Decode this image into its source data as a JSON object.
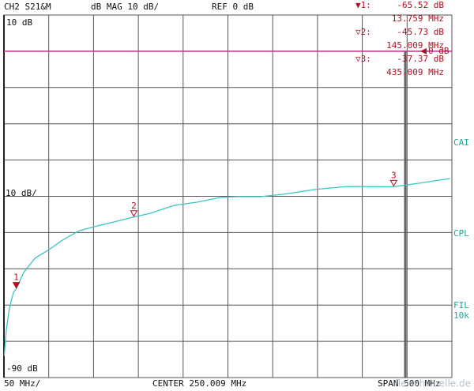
{
  "chart_data": {
    "type": "line",
    "header": [
      "CH2 S21&M",
      "dB MAG 10 dB/",
      "REF 0 dB"
    ],
    "xlim": [
      0,
      500
    ],
    "ylim": [
      -90,
      10
    ],
    "yticks": [
      {
        "value": 10,
        "label": "10 dB"
      },
      {
        "value": -90,
        "label": "-90 dB"
      }
    ],
    "grid_divisions": 10,
    "scale_label": "10 dB/",
    "bottom_labels": [
      "50 MHz/",
      "CENTER 250.009 MHz",
      "SPAN 500 MHz"
    ],
    "side_labels": [
      "CAI",
      "CPL",
      "FIL",
      "10k"
    ],
    "ref_value": 0,
    "ref_label": "0 dB",
    "ref_color": "#c0308a",
    "x": [
      0.3,
      2.6,
      6,
      10.6,
      13.759,
      22,
      35,
      48.5,
      66,
      84,
      101,
      119,
      145,
      163,
      190,
      216,
      242,
      260,
      286,
      313,
      348,
      383,
      435,
      463,
      498
    ],
    "series": [
      {
        "color": "#3cc4c4",
        "values": [
          -84,
          -77,
          -71,
          -66.5,
          -65.52,
          -61,
          -57,
          -55,
          -52,
          -49.5,
          -48.4,
          -47.3,
          -45.73,
          -44.7,
          -42.5,
          -41.6,
          -40.3,
          -40.1,
          -40.1,
          -39.4,
          -38.1,
          -37.3,
          -37.37,
          -36.4,
          -35.1
        ]
      }
    ],
    "markers": [
      {
        "label": "1",
        "symbol": "▼1:",
        "x": 13.759,
        "x_label": "13.759 MHz",
        "value": -65.52,
        "value_label": "-65.52 dB"
      },
      {
        "label": "2",
        "symbol": "▽2:",
        "x": 145.009,
        "x_label": "145.009 MHz",
        "value": -45.73,
        "value_label": "-45.73 dB"
      },
      {
        "label": "3",
        "symbol": "▽3:",
        "x": 435.009,
        "x_label": "435.009 MHz",
        "value": -37.37,
        "value_label": "-37.37 dB"
      }
    ],
    "marker_color": "#b01020",
    "watermark": "fleischwuelle.de"
  }
}
